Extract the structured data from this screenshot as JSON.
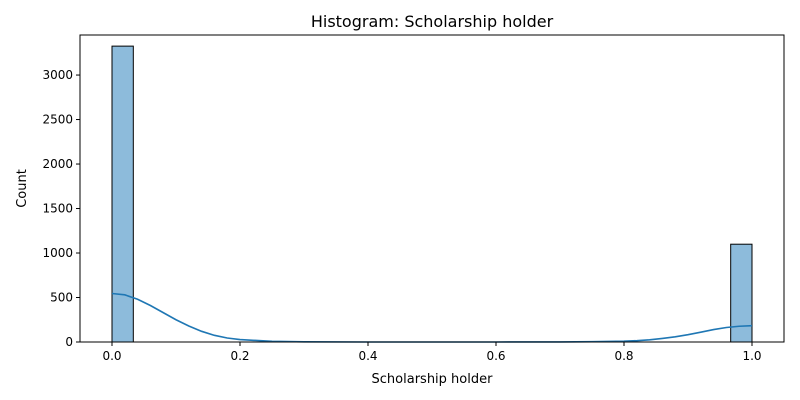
{
  "chart_data": {
    "type": "bar",
    "title": "Histogram: Scholarship holder",
    "xlabel": "Scholarship holder",
    "ylabel": "Count",
    "xlim": [
      -0.05,
      1.05
    ],
    "ylim": [
      0,
      3450
    ],
    "xticks": [
      0.0,
      0.2,
      0.4,
      0.6,
      0.8,
      1.0
    ],
    "xtick_labels": [
      "0.0",
      "0.2",
      "0.4",
      "0.6",
      "0.8",
      "1.0"
    ],
    "yticks": [
      0,
      500,
      1000,
      1500,
      2000,
      2500,
      3000
    ],
    "ytick_labels": [
      "0",
      "500",
      "1000",
      "1500",
      "2000",
      "2500",
      "3000"
    ],
    "bins": [
      {
        "x0": 0.0,
        "x1": 0.0333,
        "count": 3325
      },
      {
        "x0": 0.9667,
        "x1": 1.0,
        "count": 1099
      }
    ],
    "kde": {
      "x": [
        0.0,
        0.02,
        0.04,
        0.06,
        0.08,
        0.1,
        0.12,
        0.14,
        0.16,
        0.18,
        0.2,
        0.25,
        0.3,
        0.4,
        0.5,
        0.6,
        0.7,
        0.75,
        0.8,
        0.82,
        0.84,
        0.86,
        0.88,
        0.9,
        0.92,
        0.94,
        0.96,
        0.98,
        1.0
      ],
      "y": [
        545,
        530,
        480,
        410,
        330,
        250,
        180,
        120,
        75,
        45,
        27,
        8,
        2,
        0,
        0,
        0,
        1,
        3,
        9,
        15,
        25,
        40,
        58,
        82,
        110,
        140,
        163,
        177,
        183
      ]
    },
    "grid": false,
    "bar_color": "#8dbbdb",
    "line_color": "#1f77b4"
  }
}
